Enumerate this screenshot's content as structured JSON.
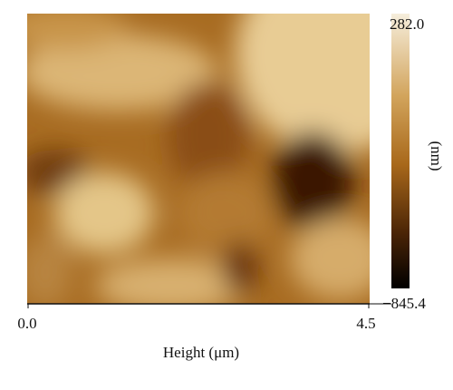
{
  "figure": {
    "x_axis": {
      "ticks": [
        "0.0",
        "4.5"
      ],
      "label": "Height (μm)"
    },
    "colorbar": {
      "max": "282.0",
      "min": "−845.4",
      "unit": "(nm)"
    }
  }
}
